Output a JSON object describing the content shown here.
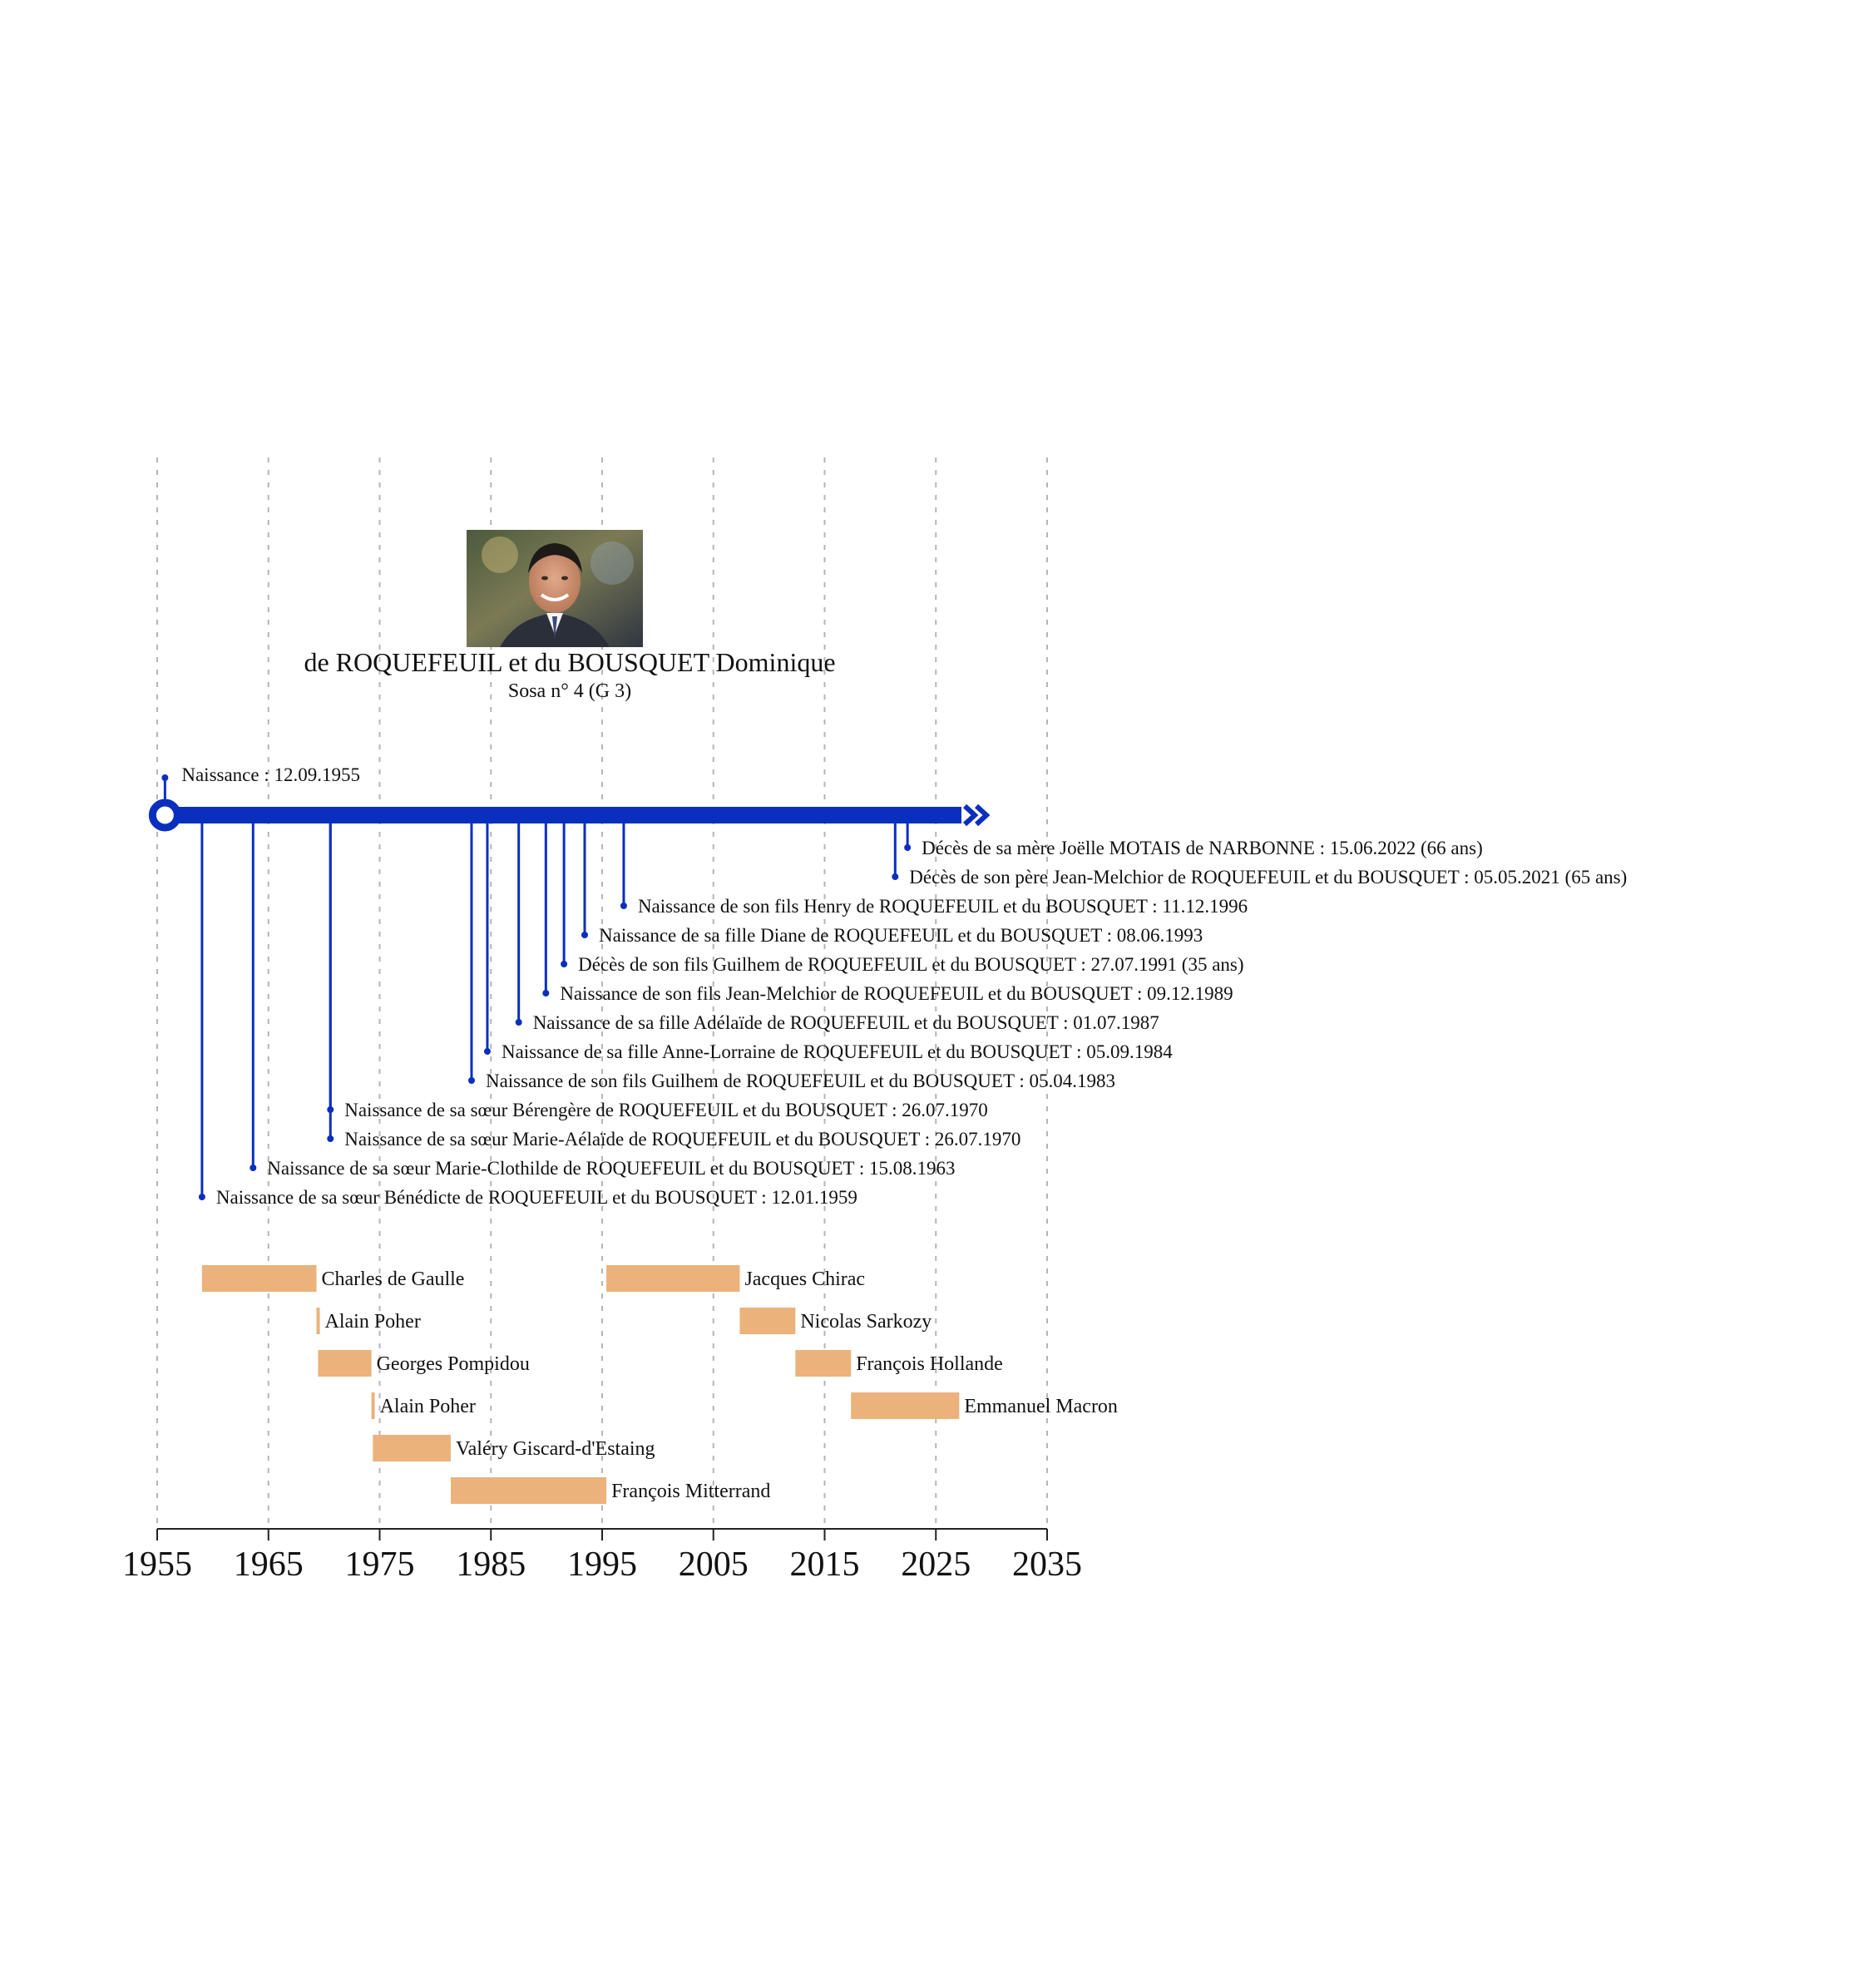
{
  "person": {
    "name": "de ROQUEFEUIL et du BOUSQUET Dominique",
    "sosa": "Sosa n° 4 (G 3)"
  },
  "colors": {
    "timeline": "#0a2fbe",
    "presidents": "#ebb27b",
    "grid": "#b5b5b5",
    "axis": "#222222"
  },
  "chart_data": {
    "type": "timeline",
    "xlim": [
      1955,
      2035
    ],
    "ticks": [
      "1955",
      "1965",
      "1975",
      "1985",
      "1995",
      "2005",
      "2015",
      "2025",
      "2035"
    ],
    "grid": true,
    "life": {
      "start": 1955.7,
      "end": 2027.3,
      "ongoing": true
    },
    "top_event": {
      "year": 1955.7,
      "label": "Naissance : 12.09.1955"
    },
    "events": [
      {
        "year": 2022.45,
        "label": "Décès de sa mère Joëlle MOTAIS de NARBONNE : 15.06.2022 (66 ans)"
      },
      {
        "year": 2021.34,
        "label": "Décès de son père Jean-Melchior de ROQUEFEUIL et du BOUSQUET : 05.05.2021 (65 ans)"
      },
      {
        "year": 1996.94,
        "label": "Naissance de son fils Henry de ROQUEFEUIL et du BOUSQUET : 11.12.1996"
      },
      {
        "year": 1993.43,
        "label": "Naissance de sa fille Diane de ROQUEFEUIL et du BOUSQUET : 08.06.1993"
      },
      {
        "year": 1991.57,
        "label": "Décès de son fils Guilhem de ROQUEFEUIL et du BOUSQUET : 27.07.1991 (35 ans)"
      },
      {
        "year": 1989.94,
        "label": "Naissance de son fils Jean-Melchior de ROQUEFEUIL et du BOUSQUET : 09.12.1989"
      },
      {
        "year": 1987.5,
        "label": "Naissance de sa fille Adélaïde de ROQUEFEUIL et du BOUSQUET : 01.07.1987"
      },
      {
        "year": 1984.68,
        "label": "Naissance de sa fille Anne-Lorraine de ROQUEFEUIL et du BOUSQUET : 05.09.1984"
      },
      {
        "year": 1983.26,
        "label": "Naissance de son fils Guilhem de ROQUEFEUIL et du BOUSQUET : 05.04.1983"
      },
      {
        "year": 1970.57,
        "label": "Naissance de sa sœur Bérengère de ROQUEFEUIL et du BOUSQUET : 26.07.1970"
      },
      {
        "year": 1970.57,
        "label": "Naissance de sa sœur Marie-Aélaïde de ROQUEFEUIL et du BOUSQUET : 26.07.1970"
      },
      {
        "year": 1963.62,
        "label": "Naissance de sa sœur Marie-Clothilde de ROQUEFEUIL et du BOUSQUET : 15.08.1963"
      },
      {
        "year": 1959.03,
        "label": "Naissance de sa sœur Bénédicte de ROQUEFEUIL et du BOUSQUET : 12.01.1959"
      }
    ],
    "presidents": [
      {
        "name": "Charles de Gaulle",
        "start": 1959.03,
        "end": 1969.32,
        "row": 0
      },
      {
        "name": "Alain Poher",
        "start": 1969.32,
        "end": 1969.46,
        "row": 1
      },
      {
        "name": "Georges Pompidou",
        "start": 1969.46,
        "end": 1974.26,
        "row": 2
      },
      {
        "name": "Alain Poher",
        "start": 1974.26,
        "end": 1974.39,
        "row": 3
      },
      {
        "name": "Valéry Giscard-d'Estaing",
        "start": 1974.39,
        "end": 1981.39,
        "row": 4
      },
      {
        "name": "François Mitterrand",
        "start": 1981.39,
        "end": 1995.38,
        "row": 5
      },
      {
        "name": "Jacques Chirac",
        "start": 1995.38,
        "end": 2007.37,
        "row": 0
      },
      {
        "name": "Nicolas Sarkozy",
        "start": 2007.37,
        "end": 2012.37,
        "row": 1
      },
      {
        "name": "François Hollande",
        "start": 2012.37,
        "end": 2017.37,
        "row": 2
      },
      {
        "name": "Emmanuel Macron",
        "start": 2017.37,
        "end": 2027.1,
        "row": 3
      }
    ]
  }
}
